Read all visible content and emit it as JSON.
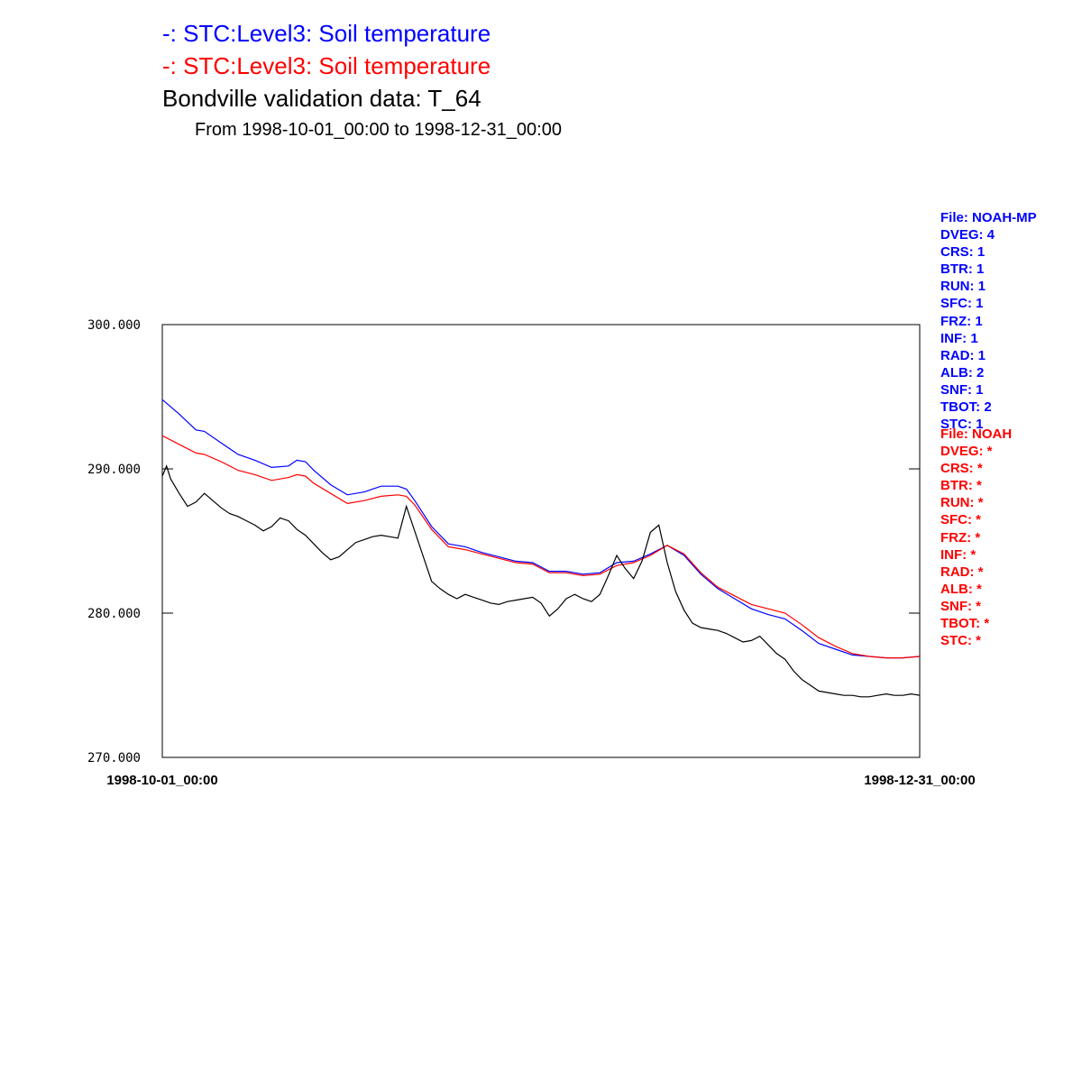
{
  "legend": [
    {
      "prefix": "-:",
      "label": "STC:Level3: Soil temperature",
      "color": "#0000ff"
    },
    {
      "prefix": "-:",
      "label": "STC:Level3: Soil temperature",
      "color": "#ff0000"
    }
  ],
  "title": "Bondville validation data:  T_64",
  "subtitle": "From 1998-10-01_00:00 to 1998-12-31_00:00",
  "settings_blue": {
    "color": "#0000ff",
    "lines": [
      "File: NOAH-MP",
      "DVEG: 4",
      "CRS: 1",
      "BTR: 1",
      "RUN: 1",
      "SFC: 1",
      "FRZ: 1",
      "INF: 1",
      "RAD: 1",
      "ALB: 2",
      "SNF: 1",
      "TBOT: 2",
      "STC: 1"
    ]
  },
  "settings_red": {
    "color": "#ff0000",
    "lines": [
      "File: NOAH",
      "DVEG: *",
      "CRS: *",
      "BTR: *",
      "RUN: *",
      "SFC: *",
      "FRZ: *",
      "INF: *",
      "RAD: *",
      "ALB: *",
      "SNF: *",
      "TBOT: *",
      "STC: *"
    ]
  },
  "chart_data": {
    "type": "line",
    "title": "Bondville validation data:  T_64",
    "subtitle": "From 1998-10-01_00:00 to 1998-12-31_00:00",
    "ylim": [
      270,
      300
    ],
    "yticks": [
      "270.000",
      "280.000",
      "290.000",
      "300.000"
    ],
    "xticks": [
      "1998-10-01_00:00",
      "1998-12-31_00:00"
    ],
    "xlim": [
      0,
      90
    ],
    "grid": false,
    "series": [
      {
        "color": "#0000ff",
        "x": [
          0,
          2,
          4,
          5,
          7,
          9,
          11,
          13,
          15,
          16,
          17,
          18,
          20,
          22,
          24,
          26,
          28,
          29,
          30,
          32,
          34,
          36,
          38,
          40,
          42,
          44,
          46,
          48,
          50,
          52,
          54,
          56,
          58,
          60,
          62,
          64,
          66,
          68,
          70,
          72,
          74,
          76,
          78,
          80,
          82,
          84,
          86,
          88,
          90
        ],
        "values": [
          294.8,
          293.8,
          292.7,
          292.6,
          291.8,
          291.0,
          290.6,
          290.1,
          290.2,
          290.6,
          290.5,
          289.9,
          288.9,
          288.2,
          288.4,
          288.8,
          288.8,
          288.6,
          287.8,
          286.0,
          284.8,
          284.6,
          284.2,
          283.9,
          283.6,
          283.5,
          282.9,
          282.9,
          282.7,
          282.8,
          283.5,
          283.6,
          284.1,
          284.7,
          284.0,
          282.7,
          281.7,
          281.0,
          280.3,
          279.9,
          279.6,
          278.8,
          277.9,
          277.5,
          277.1,
          277.0,
          276.9,
          276.9,
          277.0
        ]
      },
      {
        "color": "#ff0000",
        "x": [
          0,
          2,
          4,
          5,
          7,
          9,
          11,
          13,
          15,
          16,
          17,
          18,
          20,
          22,
          24,
          26,
          28,
          29,
          30,
          32,
          34,
          36,
          38,
          40,
          42,
          44,
          46,
          48,
          50,
          52,
          54,
          56,
          58,
          60,
          62,
          64,
          66,
          68,
          70,
          72,
          74,
          76,
          78,
          80,
          82,
          84,
          86,
          88,
          90
        ],
        "values": [
          292.3,
          291.7,
          291.1,
          291.0,
          290.5,
          289.9,
          289.6,
          289.2,
          289.4,
          289.6,
          289.5,
          289.0,
          288.3,
          287.6,
          287.8,
          288.1,
          288.2,
          288.1,
          287.5,
          285.8,
          284.6,
          284.4,
          284.1,
          283.8,
          283.5,
          283.4,
          282.8,
          282.8,
          282.6,
          282.7,
          283.3,
          283.5,
          284.0,
          284.7,
          284.1,
          282.8,
          281.8,
          281.2,
          280.6,
          280.3,
          280.0,
          279.2,
          278.3,
          277.7,
          277.2,
          277.0,
          276.9,
          276.9,
          277.0
        ]
      },
      {
        "color": "#000000",
        "x": [
          0,
          0.5,
          1,
          2,
          3,
          4,
          5,
          6,
          7,
          8,
          9,
          10,
          11,
          12,
          13,
          14,
          15,
          16,
          17,
          18,
          19,
          20,
          21,
          22,
          23,
          24,
          25,
          26,
          27,
          28,
          29,
          32,
          33,
          34,
          35,
          36,
          37,
          38,
          39,
          40,
          41,
          42,
          44,
          45,
          46,
          47,
          48,
          49,
          50,
          51,
          52,
          53,
          54,
          55,
          56,
          57,
          58,
          59,
          60,
          61,
          62,
          63,
          64,
          65,
          66,
          67,
          68,
          69,
          70,
          71,
          72,
          73,
          74,
          75,
          76,
          77,
          78,
          79,
          80,
          81,
          82,
          83,
          84,
          85,
          86,
          87,
          88,
          89,
          90
        ],
        "values": [
          289.5,
          290.2,
          289.3,
          288.3,
          287.4,
          287.7,
          288.3,
          287.8,
          287.3,
          286.9,
          286.7,
          286.4,
          286.1,
          285.7,
          286.0,
          286.6,
          286.4,
          285.8,
          285.4,
          284.8,
          284.2,
          283.7,
          283.9,
          284.4,
          284.9,
          285.1,
          285.3,
          285.4,
          285.3,
          285.2,
          287.4,
          282.2,
          281.7,
          281.3,
          281.0,
          281.3,
          281.1,
          280.9,
          280.7,
          280.6,
          280.8,
          280.9,
          281.1,
          280.7,
          279.8,
          280.3,
          281.0,
          281.3,
          281.0,
          280.8,
          281.3,
          282.6,
          284.0,
          283.1,
          282.4,
          283.6,
          285.6,
          286.1,
          283.5,
          281.5,
          280.2,
          279.3,
          279.0,
          278.9,
          278.8,
          278.6,
          278.3,
          278.0,
          278.1,
          278.4,
          277.8,
          277.2,
          276.8,
          276.0,
          275.4,
          275.0,
          274.6,
          274.5,
          274.4,
          274.3,
          274.3,
          274.2,
          274.2,
          274.3,
          274.4,
          274.3,
          274.3,
          274.4,
          274.3
        ]
      }
    ]
  }
}
